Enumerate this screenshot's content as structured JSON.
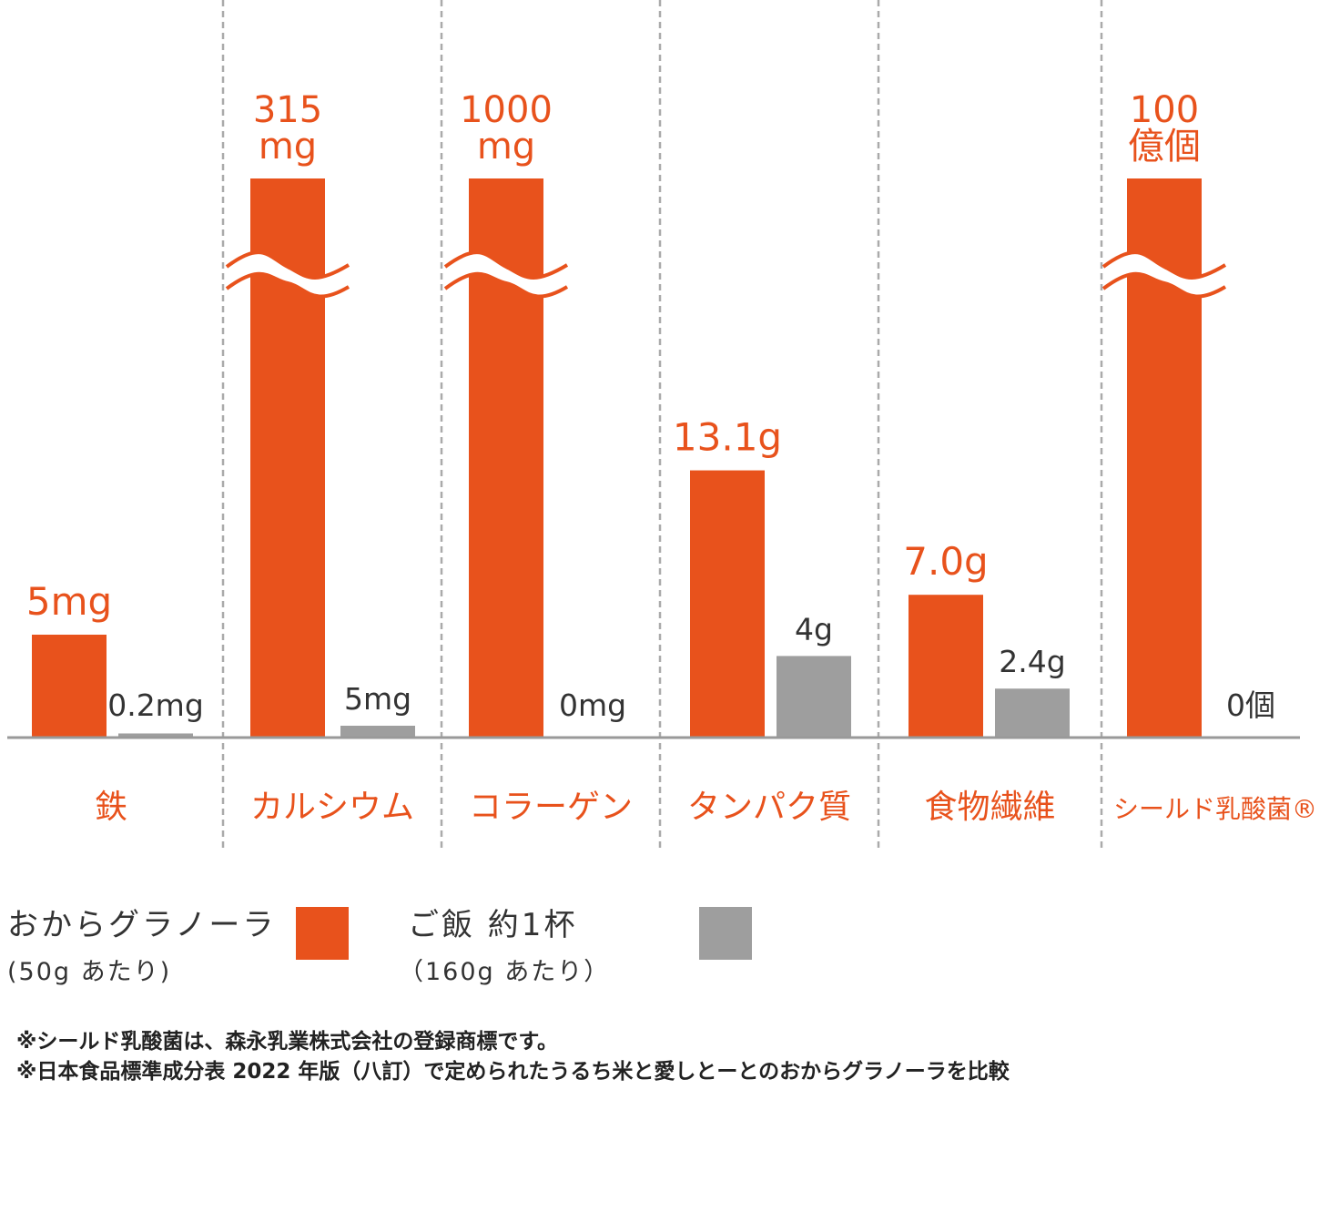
{
  "chart_data": {
    "type": "bar",
    "categories": [
      "鉄",
      "カルシウム",
      "コラーゲン",
      "タンパク質",
      "食物繊維",
      "シールド乳酸菌®"
    ],
    "series": [
      {
        "name": "おからグラノーラ",
        "color": "#e8521c",
        "value_labels": [
          "5mg",
          "315\nmg",
          "1000\nmg",
          "13.1g",
          "7.0g",
          "100\n億個"
        ],
        "values": [
          5,
          315,
          1000,
          13.1,
          7.0,
          100
        ],
        "axis_break": [
          false,
          true,
          true,
          false,
          false,
          true
        ]
      },
      {
        "name": "ご飯 約1杯",
        "color": "#9e9e9e",
        "value_labels": [
          "0.2mg",
          "5mg",
          "0mg",
          "4g",
          "2.4g",
          "0個"
        ],
        "values": [
          0.2,
          5,
          0,
          4,
          2.4,
          0
        ]
      }
    ],
    "colors": {
      "category_label": "#e8521c",
      "value_label_gray": "#333333",
      "axis": "#999999",
      "divider": "#aaaaaa"
    }
  },
  "legend": {
    "okara": {
      "label": "おからグラノーラ",
      "sub": "(50g あたり)",
      "color": "#e8521c"
    },
    "rice": {
      "label": "ご飯 約1杯",
      "sub": "（160g あたり）",
      "color": "#9e9e9e"
    }
  },
  "notes": [
    "※シールド乳酸菌は、森永乳業株式会社の登録商標です。",
    "※日本食品標準成分表 2022 年版（八訂）で定められたうるち米と愛しとーとのおからグラノーラを比較"
  ]
}
